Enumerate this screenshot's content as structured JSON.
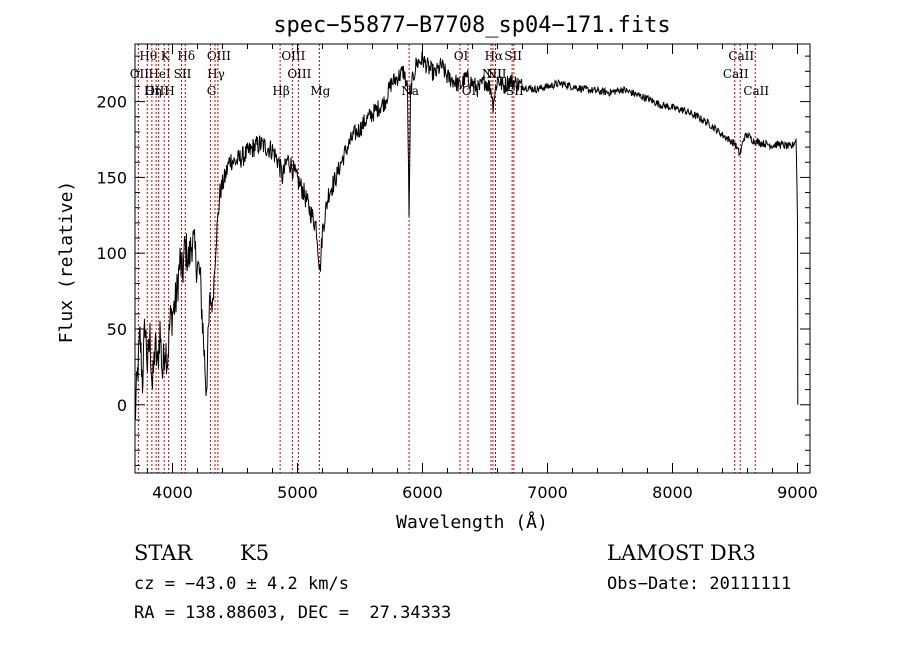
{
  "chart_data": {
    "type": "line",
    "title": "spec−55877−B7708_sp04−171.fits",
    "xlabel": "Wavelength (Å)",
    "ylabel": "Flux (relative)",
    "xlim": [
      3700,
      9100
    ],
    "ylim": [
      -45,
      238
    ],
    "xticks": [
      4000,
      5000,
      6000,
      7000,
      8000,
      9000
    ],
    "yticks": [
      0,
      50,
      100,
      150,
      200
    ],
    "line_color": "#000000",
    "marker_color": "#cc0000",
    "series": [
      {
        "name": "flux",
        "anchors": [
          [
            3700,
            -10
          ],
          [
            3720,
            20
          ],
          [
            3740,
            45
          ],
          [
            3760,
            15
          ],
          [
            3780,
            55
          ],
          [
            3800,
            25
          ],
          [
            3820,
            45
          ],
          [
            3840,
            10
          ],
          [
            3860,
            40
          ],
          [
            3880,
            25
          ],
          [
            3900,
            50
          ],
          [
            3920,
            20
          ],
          [
            3940,
            40
          ],
          [
            3960,
            30
          ],
          [
            3980,
            55
          ],
          [
            4000,
            60
          ],
          [
            4030,
            70
          ],
          [
            4060,
            95
          ],
          [
            4080,
            85
          ],
          [
            4100,
            105
          ],
          [
            4130,
            95
          ],
          [
            4160,
            110
          ],
          [
            4190,
            95
          ],
          [
            4220,
            85
          ],
          [
            4250,
            40
          ],
          [
            4270,
            10
          ],
          [
            4300,
            70
          ],
          [
            4320,
            65
          ],
          [
            4350,
            110
          ],
          [
            4380,
            140
          ],
          [
            4420,
            150
          ],
          [
            4460,
            162
          ],
          [
            4500,
            160
          ],
          [
            4550,
            163
          ],
          [
            4600,
            166
          ],
          [
            4650,
            170
          ],
          [
            4700,
            172
          ],
          [
            4750,
            170
          ],
          [
            4800,
            168
          ],
          [
            4850,
            160
          ],
          [
            4880,
            150
          ],
          [
            4920,
            162
          ],
          [
            4950,
            158
          ],
          [
            4990,
            150
          ],
          [
            5050,
            140
          ],
          [
            5100,
            128
          ],
          [
            5150,
            118
          ],
          [
            5180,
            88
          ],
          [
            5200,
            115
          ],
          [
            5250,
            140
          ],
          [
            5300,
            148
          ],
          [
            5350,
            160
          ],
          [
            5400,
            170
          ],
          [
            5450,
            178
          ],
          [
            5500,
            182
          ],
          [
            5550,
            188
          ],
          [
            5600,
            192
          ],
          [
            5650,
            196
          ],
          [
            5700,
            200
          ],
          [
            5750,
            212
          ],
          [
            5800,
            216
          ],
          [
            5850,
            220
          ],
          [
            5880,
            208
          ],
          [
            5893,
            120
          ],
          [
            5905,
            208
          ],
          [
            5950,
            225
          ],
          [
            6000,
            228
          ],
          [
            6050,
            222
          ],
          [
            6100,
            218
          ],
          [
            6150,
            224
          ],
          [
            6200,
            216
          ],
          [
            6250,
            214
          ],
          [
            6300,
            210
          ],
          [
            6350,
            216
          ],
          [
            6400,
            212
          ],
          [
            6450,
            208
          ],
          [
            6500,
            214
          ],
          [
            6550,
            208
          ],
          [
            6563,
            198
          ],
          [
            6600,
            215
          ],
          [
            6650,
            210
          ],
          [
            6700,
            214
          ],
          [
            6750,
            212
          ],
          [
            6800,
            210
          ],
          [
            6900,
            208
          ],
          [
            7000,
            210
          ],
          [
            7100,
            212
          ],
          [
            7200,
            210
          ],
          [
            7300,
            208
          ],
          [
            7400,
            207
          ],
          [
            7500,
            206
          ],
          [
            7600,
            208
          ],
          [
            7700,
            205
          ],
          [
            7800,
            202
          ],
          [
            7900,
            198
          ],
          [
            8000,
            196
          ],
          [
            8100,
            194
          ],
          [
            8200,
            190
          ],
          [
            8300,
            185
          ],
          [
            8400,
            178
          ],
          [
            8500,
            172
          ],
          [
            8540,
            165
          ],
          [
            8570,
            176
          ],
          [
            8600,
            178
          ],
          [
            8650,
            174
          ],
          [
            8700,
            173
          ],
          [
            8750,
            172
          ],
          [
            8800,
            171
          ],
          [
            8850,
            172
          ],
          [
            8900,
            171
          ],
          [
            8950,
            170
          ],
          [
            8990,
            175
          ],
          [
            9000,
            120
          ],
          [
            9010,
            0
          ]
        ]
      }
    ],
    "line_markers": [
      {
        "label": "Hθ",
        "wl": 3798,
        "row": 0
      },
      {
        "label": "K",
        "wl": 3934,
        "row": 0
      },
      {
        "label": "Hδ",
        "wl": 4102,
        "row": 0
      },
      {
        "label": "OIII",
        "wl": 4363,
        "row": 0
      },
      {
        "label": "OIII",
        "wl": 4959,
        "row": 0
      },
      {
        "label": "OI",
        "wl": 6300,
        "row": 0
      },
      {
        "label": "Hα",
        "wl": 6563,
        "row": 0
      },
      {
        "label": "SII",
        "wl": 6717,
        "row": 0
      },
      {
        "label": "CaII",
        "wl": 8542,
        "row": 0
      },
      {
        "label": "OII",
        "wl": 3727,
        "row": 1
      },
      {
        "label": "HeI",
        "wl": 3889,
        "row": 1
      },
      {
        "label": "SII",
        "wl": 4072,
        "row": 1
      },
      {
        "label": "Hγ",
        "wl": 4340,
        "row": 1
      },
      {
        "label": "OIII",
        "wl": 5007,
        "row": 1
      },
      {
        "label": "NII",
        "wl": 6548,
        "row": 1
      },
      {
        "label": "NII",
        "wl": 6584,
        "row": 1
      },
      {
        "label": "CaII",
        "wl": 8498,
        "row": 1
      },
      {
        "label": "OIII",
        "wl": 3869,
        "row": 2
      },
      {
        "label": "Hη",
        "wl": 3835,
        "row": 2
      },
      {
        "label": "H",
        "wl": 3969,
        "row": 2
      },
      {
        "label": "G",
        "wl": 4304,
        "row": 2
      },
      {
        "label": "Hβ",
        "wl": 4861,
        "row": 2
      },
      {
        "label": "Mg",
        "wl": 5175,
        "row": 2
      },
      {
        "label": "Na",
        "wl": 5893,
        "row": 2
      },
      {
        "label": "OI",
        "wl": 6364,
        "row": 2
      },
      {
        "label": "SII",
        "wl": 6731,
        "row": 2
      },
      {
        "label": "CaII",
        "wl": 8662,
        "row": 2
      }
    ]
  },
  "info": {
    "class_label": "STAR",
    "subclass": "K5",
    "survey": "LAMOST DR3",
    "cz_line": "cz = −43.0 ± 4.2 km/s",
    "obs_date": "Obs−Date: 20111111",
    "coords": "RA = 138.88603, DEC =  27.34333"
  }
}
